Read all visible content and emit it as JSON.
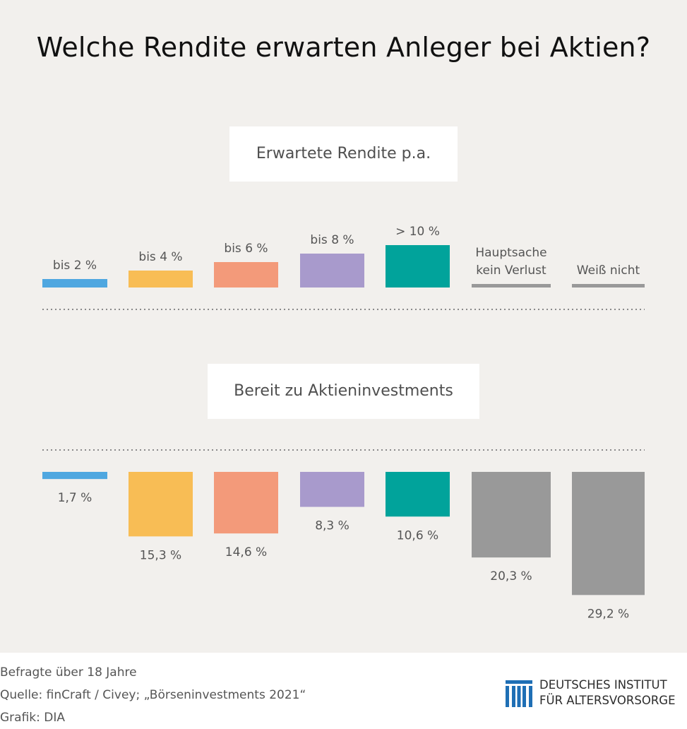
{
  "title": "Welche Rendite erwarten Anleger bei Aktien?",
  "section_top": "Erwartete Rendite p.a.",
  "section_bottom": "Bereit zu Aktieninvestments",
  "chart_data": {
    "type": "bar",
    "categories": [
      "bis 2 %",
      "bis 4 %",
      "bis 6 %",
      "bis 8 %",
      "> 10 %",
      "Hauptsache kein Verlust",
      "Weiß nicht"
    ],
    "category_lines": [
      [
        "bis 2 %"
      ],
      [
        "bis 4 %"
      ],
      [
        "bis 6 %"
      ],
      [
        "bis 8 %"
      ],
      [
        "> 10 %"
      ],
      [
        "Hauptsache",
        "kein Verlust"
      ],
      [
        "Weiß nicht"
      ]
    ],
    "top_bar_levels": [
      1,
      2,
      3,
      4,
      5,
      0,
      0
    ],
    "values": [
      1.7,
      15.3,
      14.6,
      8.3,
      10.6,
      20.3,
      29.2
    ],
    "value_labels": [
      "1,7 %",
      "15,3 %",
      "14,6 %",
      "8,3 %",
      "10,6 %",
      "20,3 %",
      "29,2 %"
    ],
    "colors": [
      "#4fa7e0",
      "#f8bd55",
      "#f39a7a",
      "#a89acc",
      "#01a39b",
      "#999999",
      "#999999"
    ],
    "ylim": [
      0,
      30
    ]
  },
  "footer": {
    "line1": "Befragte über 18 Jahre",
    "line2": "Quelle: finCraft / Civey; „Börseninvestments 2021“",
    "line3": "Grafik: DIA"
  },
  "logo": {
    "line1": "DEUTSCHES INSTITUT",
    "line2": "FÜR ALTERSVORSORGE",
    "color": "#1f6fb5"
  }
}
